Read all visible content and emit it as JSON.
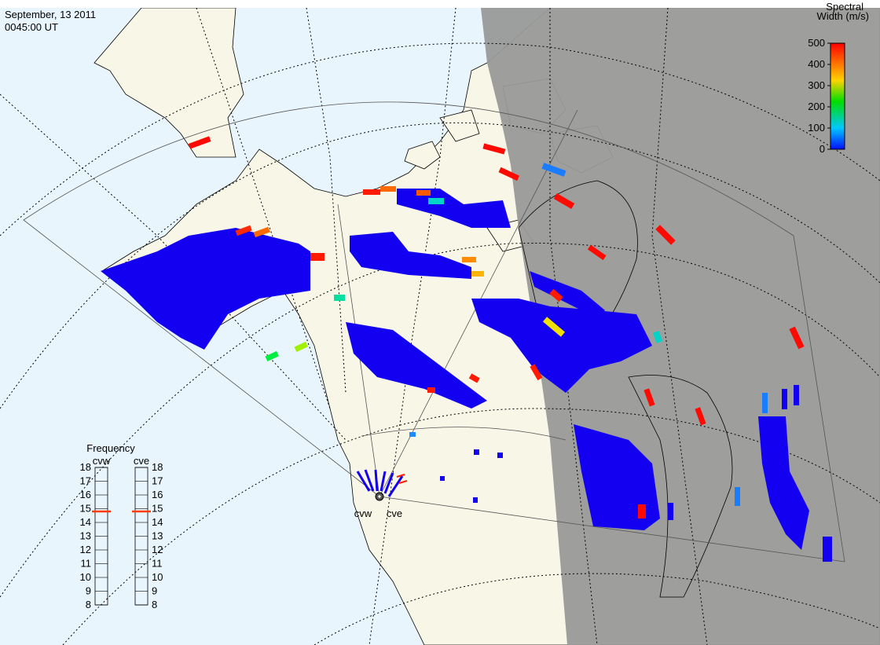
{
  "header": {
    "date": "September, 13 2011",
    "time": "0045:00 UT"
  },
  "colorbar": {
    "title_lines": [
      "Spectral",
      "Width (m/s)"
    ],
    "range": [
      0,
      500
    ],
    "ticks": [
      0,
      100,
      200,
      300,
      400,
      500
    ]
  },
  "frequency": {
    "title": "Frequency",
    "range": [
      8,
      18
    ],
    "ticks": [
      8,
      9,
      10,
      11,
      12,
      13,
      14,
      15,
      16,
      17,
      18
    ],
    "radars": [
      {
        "name": "cvw",
        "value": 14.8
      },
      {
        "name": "cve",
        "value": 14.8
      }
    ]
  },
  "sites": [
    "cvw",
    "cve"
  ]
}
